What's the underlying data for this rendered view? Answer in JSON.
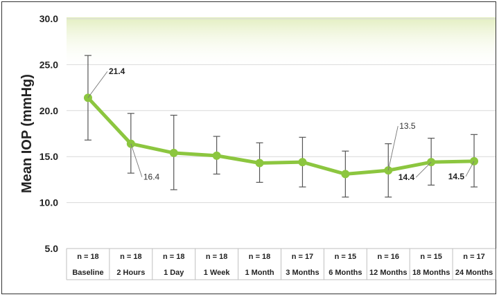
{
  "chart_data": {
    "type": "line",
    "title": "",
    "ylabel": "Mean IOP (mmHg)",
    "xlabel": "",
    "ylim": [
      5.0,
      30.0
    ],
    "yticks": [
      "5.0",
      "10.0",
      "15.0",
      "20.0",
      "25.0",
      "30.0"
    ],
    "grid": true,
    "categories": [
      "Baseline",
      "2 Hours",
      "1 Day",
      "1 Week",
      "1 Month",
      "3 Months",
      "6 Months",
      "12 Months",
      "18 Months",
      "24 Months"
    ],
    "n_labels": [
      "n = 18",
      "n = 18",
      "n = 18",
      "n = 18",
      "n = 18",
      "n = 17",
      "n = 15",
      "n = 16",
      "n = 15",
      "n = 17"
    ],
    "series": [
      {
        "values": [
          21.4,
          16.4,
          15.4,
          15.1,
          14.3,
          14.4,
          13.1,
          13.5,
          14.4,
          14.5
        ],
        "error_low": [
          16.8,
          13.2,
          11.4,
          13.1,
          12.2,
          11.7,
          10.6,
          10.6,
          11.9,
          11.7
        ],
        "error_high": [
          26.0,
          19.7,
          19.5,
          17.2,
          16.5,
          17.1,
          15.6,
          16.4,
          17.0,
          17.4
        ],
        "color": "#8cc63f"
      }
    ],
    "data_labels": [
      {
        "index": 0,
        "text": "21.4",
        "bold": true
      },
      {
        "index": 1,
        "text": "16.4",
        "bold": false
      },
      {
        "index": 7,
        "text": "13.5",
        "bold": false
      },
      {
        "index": 8,
        "text": "14.4",
        "bold": true
      },
      {
        "index": 9,
        "text": "14.5",
        "bold": true
      }
    ],
    "colors": {
      "line": "#8cc63f",
      "band_top": "#e3eec0",
      "error_bar": "#555555",
      "grid": "#d9d9d9"
    }
  }
}
